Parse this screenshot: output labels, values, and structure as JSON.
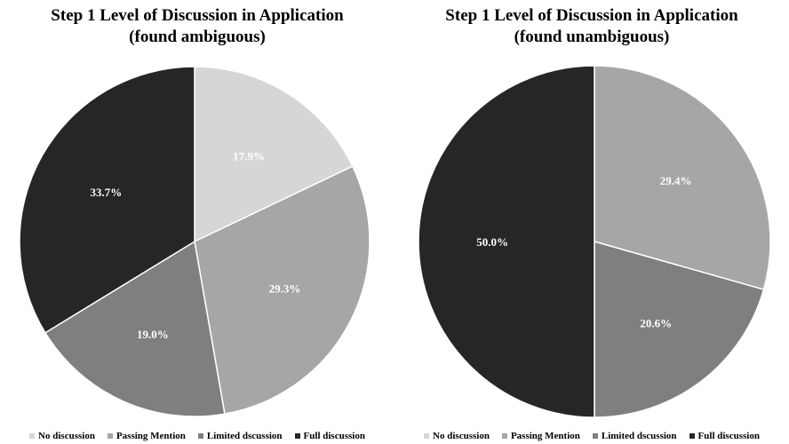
{
  "colors": {
    "no_discussion": "#d6d6d6",
    "passing_mention": "#a6a6a6",
    "limited_discussion": "#7f7f7f",
    "full_discussion": "#262626",
    "slice_border": "#ffffff"
  },
  "legend_labels": [
    "No discussion",
    "Passing Mention",
    "Limited dscussion",
    "Full discussion"
  ],
  "chart_data": [
    {
      "type": "pie",
      "title_line1": "Step 1 Level of Discussion in Application",
      "title_line2": "(found ambiguous)",
      "categories": [
        "No discussion",
        "Passing Mention",
        "Limited dscussion",
        "Full discussion"
      ],
      "values": [
        17.9,
        29.3,
        19.0,
        33.7
      ],
      "labels": [
        "17.9%",
        "29.3%",
        "19.0%",
        "33.7%"
      ],
      "legend_position": "bottom"
    },
    {
      "type": "pie",
      "title_line1": "Step 1 Level of Discussion in Application",
      "title_line2": "(found unambiguous)",
      "categories": [
        "No discussion",
        "Passing Mention",
        "Limited dscussion",
        "Full discussion"
      ],
      "values": [
        0,
        29.4,
        20.6,
        50.0
      ],
      "labels": [
        "",
        "29.4%",
        "20.6%",
        "50.0%"
      ],
      "legend_position": "bottom"
    }
  ]
}
